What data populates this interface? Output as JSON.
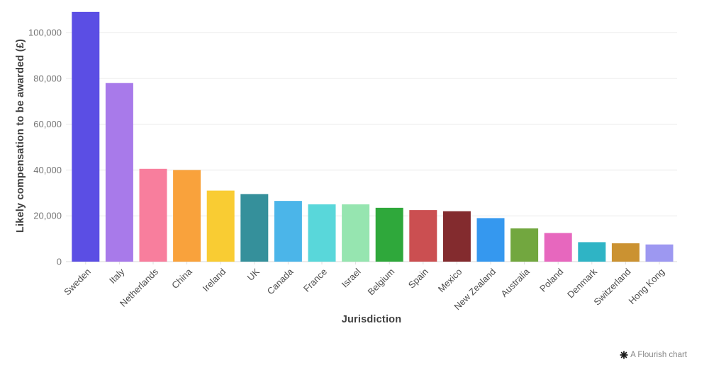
{
  "chart_data": {
    "type": "bar",
    "title": "",
    "xlabel": "Jurisdiction",
    "ylabel": "Likely compensation to be awarded (£)",
    "ylim": [
      0,
      110000
    ],
    "grid": true,
    "legend": "none",
    "y_ticks": [
      {
        "value": 0,
        "label": "0"
      },
      {
        "value": 20000,
        "label": "20,000"
      },
      {
        "value": 40000,
        "label": "40,000"
      },
      {
        "value": 60000,
        "label": "60,000"
      },
      {
        "value": 80000,
        "label": "80,000"
      },
      {
        "value": 100000,
        "label": "100,000"
      }
    ],
    "categories": [
      "Sweden",
      "Italy",
      "Netherlands",
      "China",
      "Ireland",
      "UK",
      "Canada",
      "France",
      "Israel",
      "Belgium",
      "Spain",
      "Mexico",
      "New Zealand",
      "Australia",
      "Poland",
      "Denmark",
      "Switzerland",
      "Hong Kong"
    ],
    "values": [
      109000,
      78000,
      40500,
      40000,
      31000,
      29500,
      26500,
      25000,
      25000,
      23500,
      22500,
      22000,
      19000,
      14500,
      12500,
      8500,
      8000,
      7500
    ],
    "bar_colors": [
      "#5B4EE4",
      "#A87AEA",
      "#F87E9D",
      "#F9A23C",
      "#F9CC33",
      "#35909B",
      "#4BB5E9",
      "#59D7DA",
      "#96E5B0",
      "#2FA83B",
      "#CB4F51",
      "#832B2E",
      "#3598EF",
      "#72A73F",
      "#E767BE",
      "#2FB4C5",
      "#CB9231",
      "#9D98F1"
    ]
  },
  "attribution": {
    "icon": "flourish-asterisk-icon",
    "label": "A Flourish chart"
  },
  "colors": {
    "background": "#ffffff",
    "grid_line": "#e9e9e9",
    "axis_line": "#d9d9d9",
    "tick_mark": "#dedede",
    "tick_label": "#757575",
    "category_label": "#4d4d4d",
    "axis_title": "#3f3f3f",
    "attribution_text": "#888888",
    "attribution_icon": "#1a1a1a"
  }
}
